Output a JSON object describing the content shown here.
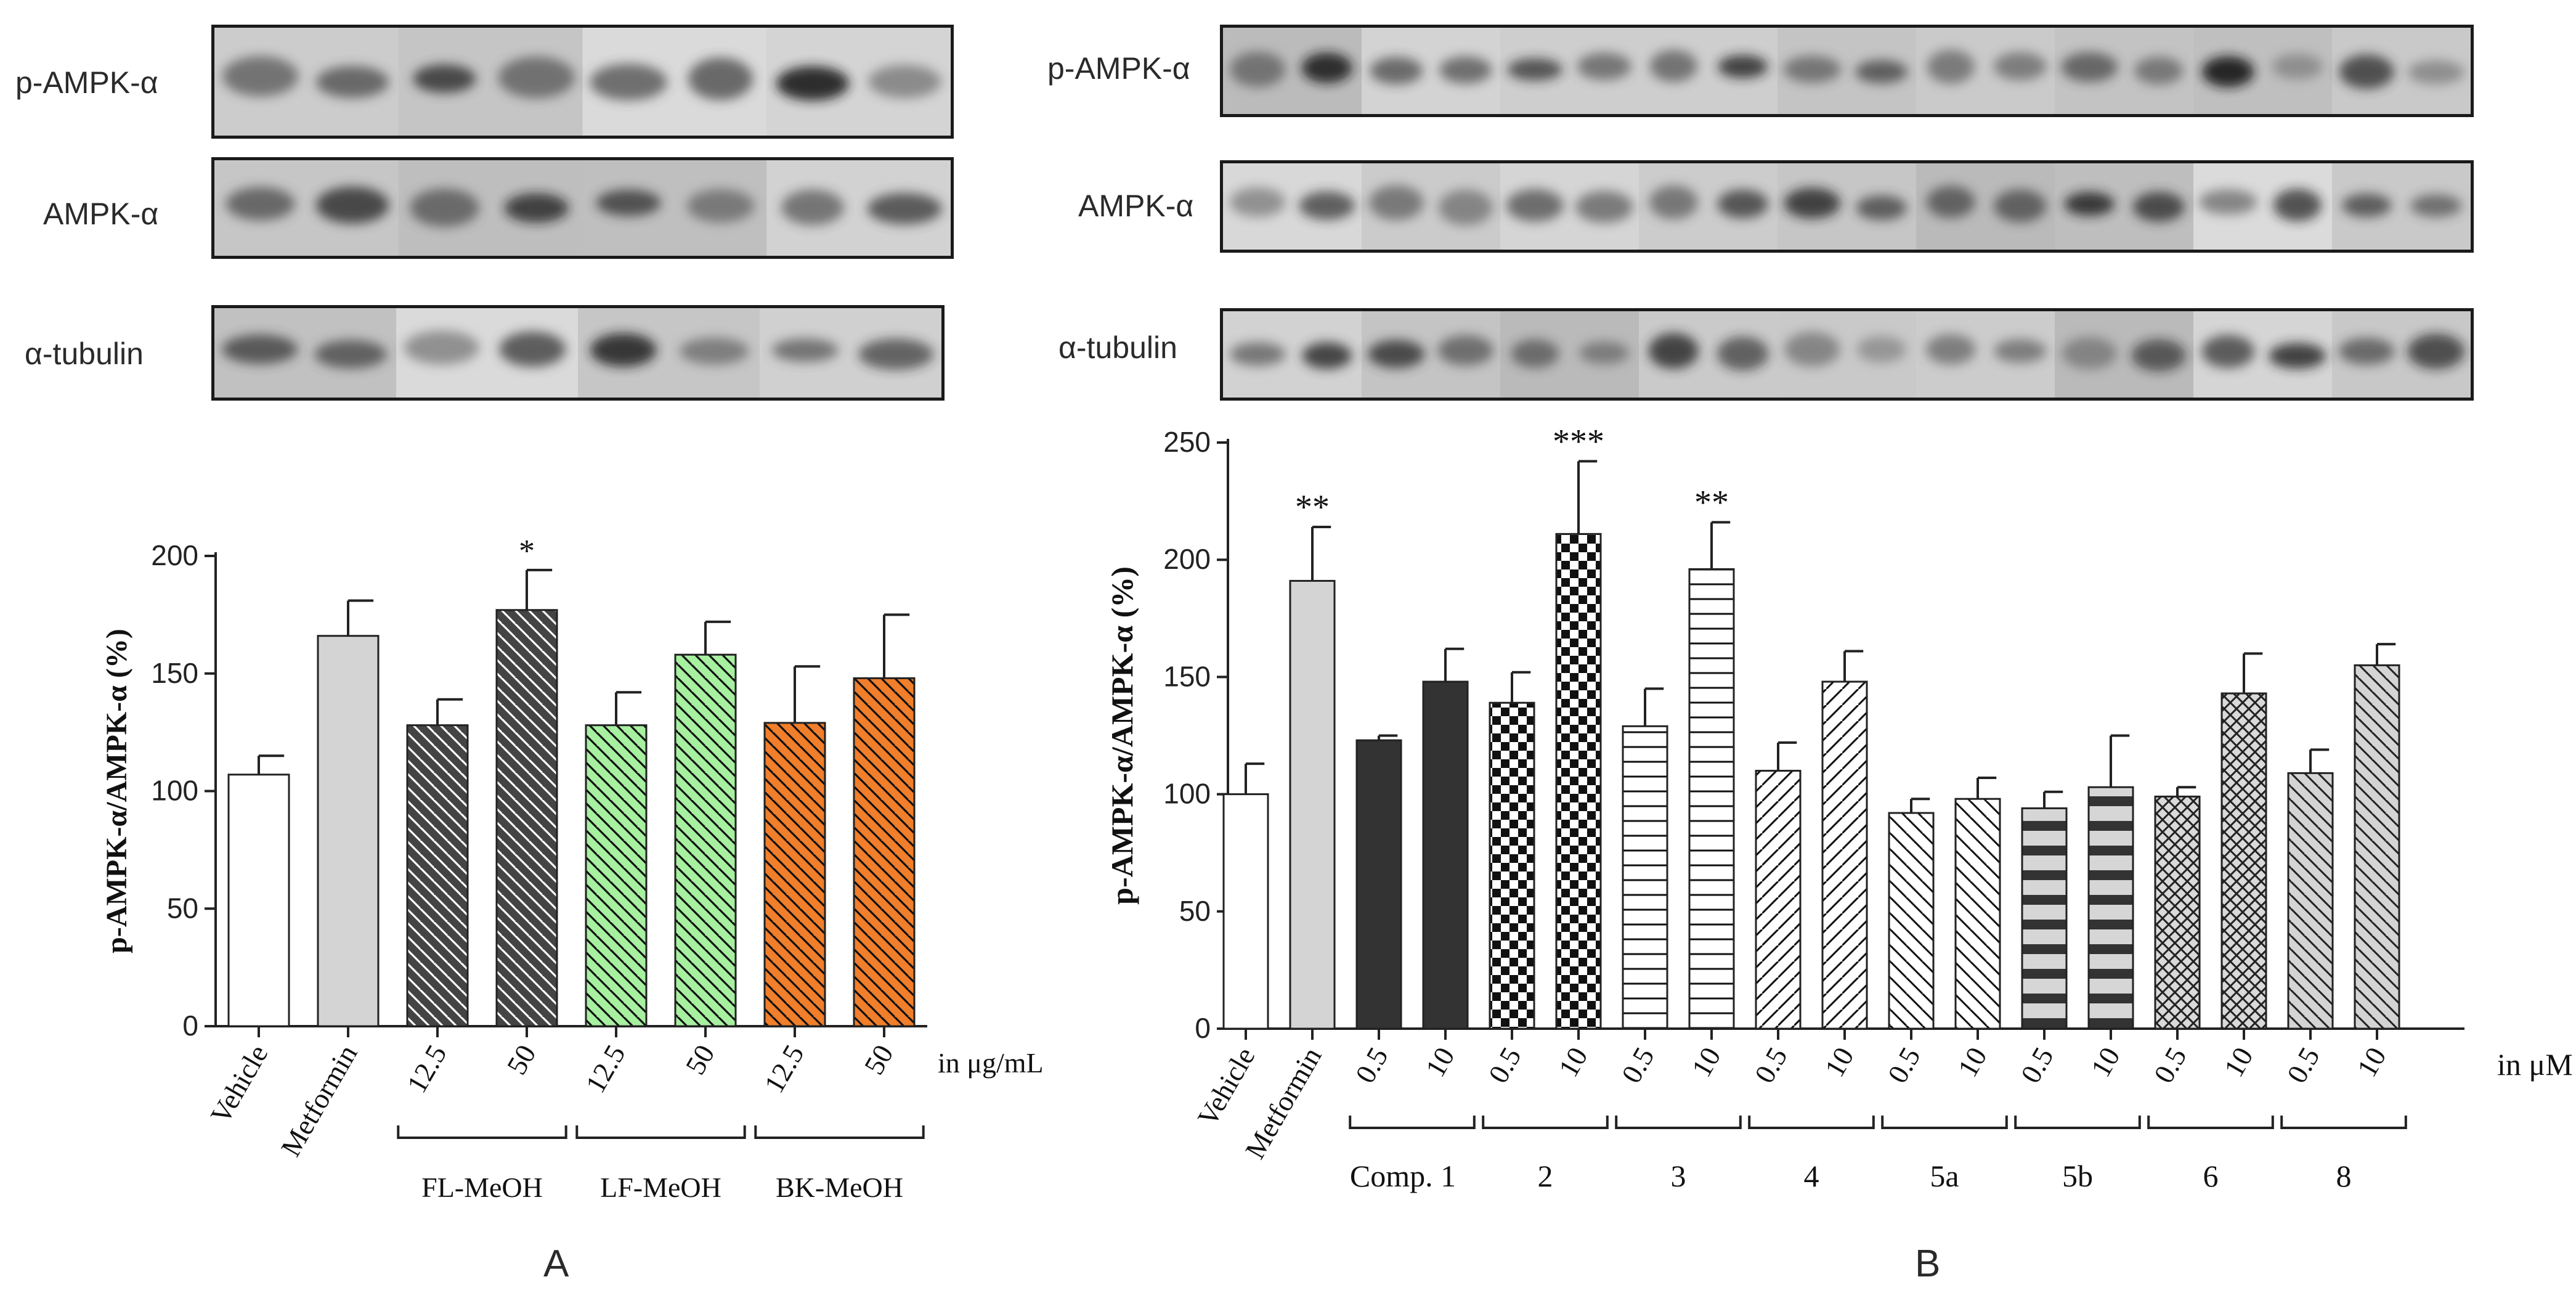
{
  "panels": {
    "A": {
      "letter": "A",
      "blot_labels": [
        "p-AMPK-α",
        "AMPK-α",
        "α-tubulin"
      ],
      "unit_label": "in μg/mL",
      "group_labels": [
        "FL-MeOH",
        "LF-MeOH",
        "BK-MeOH"
      ]
    },
    "B": {
      "letter": "B",
      "blot_labels": [
        "p-AMPK-α",
        "AMPK-α",
        "α-tubulin"
      ],
      "unit_label": "in μM",
      "group_labels": [
        "Comp. 1",
        "2",
        "3",
        "4",
        "5a",
        "5b",
        "6",
        "8"
      ]
    }
  },
  "chart_data": [
    {
      "type": "bar",
      "panel": "A",
      "ylabel": "p-AMPK-α/AMPK-α (%)",
      "ylim": [
        0,
        200
      ],
      "yticks": [
        0,
        50,
        100,
        150,
        200
      ],
      "categories": [
        "Vehicle",
        "Metformin",
        "12.5",
        "50",
        "12.5",
        "50",
        "12.5",
        "50"
      ],
      "values": [
        107,
        166,
        128,
        177,
        128,
        158,
        129,
        148
      ],
      "errors": [
        8,
        15,
        11,
        17,
        14,
        14,
        24,
        27
      ],
      "significance": [
        "",
        "",
        "",
        "*",
        "",
        "",
        "",
        ""
      ],
      "colors": [
        "#ffffff",
        "#d4d4d4",
        "#444444",
        "#444444",
        "#a6f0a0",
        "#a6f0a0",
        "#f07e2a",
        "#f07e2a"
      ],
      "patterns": [
        "none",
        "none",
        "diag-back",
        "diag-back",
        "diag-back",
        "diag-back",
        "diag-back",
        "diag-back"
      ]
    },
    {
      "type": "bar",
      "panel": "B",
      "ylabel": "p-AMPK-α/AMPK-α (%)",
      "ylim": [
        0,
        250
      ],
      "yticks": [
        0,
        50,
        100,
        150,
        200,
        250
      ],
      "categories": [
        "Vehicle",
        "Metformin",
        "0.5",
        "10",
        "0.5",
        "10",
        "0.5",
        "10",
        "0.5",
        "10",
        "0.5",
        "10",
        "0.5",
        "10",
        "0.5",
        "10",
        "0.5",
        "10"
      ],
      "values": [
        100,
        191,
        123,
        148,
        139,
        211,
        129,
        196,
        110,
        148,
        92,
        98,
        94,
        103,
        99,
        143,
        109,
        155
      ],
      "errors": [
        13,
        23,
        2,
        14,
        13,
        31,
        16,
        20,
        12,
        13,
        6,
        9,
        7,
        22,
        4,
        17,
        10,
        9
      ],
      "significance": [
        "",
        "**",
        "",
        "",
        "",
        "***",
        "",
        "**",
        "",
        "",
        "",
        "",
        "",
        "",
        "",
        "",
        "",
        ""
      ],
      "patterns": [
        "white",
        "lightgray",
        "dark",
        "dark",
        "checker",
        "checker",
        "hlines",
        "hlines",
        "diag-fwd",
        "diag-fwd",
        "diag-back",
        "diag-back",
        "thick-hlines",
        "thick-hlines",
        "crosshatch",
        "crosshatch",
        "diag-gray",
        "diag-gray"
      ]
    }
  ]
}
